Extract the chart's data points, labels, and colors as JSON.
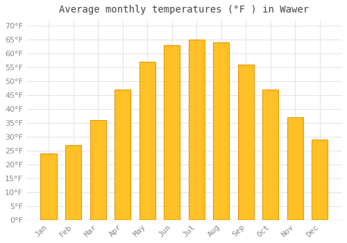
{
  "title": "Average monthly temperatures (°F ) in Wawer",
  "months": [
    "Jan",
    "Feb",
    "Mar",
    "Apr",
    "May",
    "Jun",
    "Jul",
    "Aug",
    "Sep",
    "Oct",
    "Nov",
    "Dec"
  ],
  "values": [
    24,
    27,
    36,
    47,
    57,
    63,
    65,
    64,
    56,
    47,
    37,
    29
  ],
  "bar_color": "#FFC125",
  "bar_edge_color": "#E8960A",
  "background_color": "#FFFFFF",
  "plot_bg_color": "#FFFFFF",
  "grid_color": "#DDDDDD",
  "ylim": [
    0,
    72
  ],
  "yticks": [
    0,
    5,
    10,
    15,
    20,
    25,
    30,
    35,
    40,
    45,
    50,
    55,
    60,
    65,
    70
  ],
  "title_fontsize": 10,
  "tick_fontsize": 8,
  "tick_color": "#888888",
  "title_color": "#444444",
  "font_family": "monospace",
  "bar_width": 0.65
}
